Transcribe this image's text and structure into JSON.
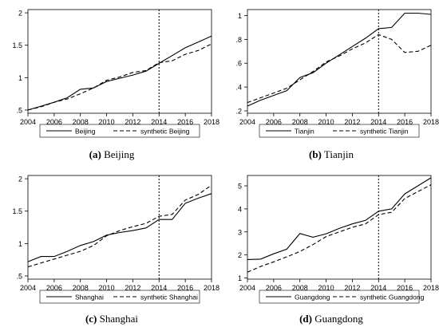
{
  "chart_data": [
    {
      "type": "line",
      "x": [
        2004,
        2005,
        2006,
        2007,
        2008,
        2009,
        2010,
        2011,
        2012,
        2013,
        2014,
        2015,
        2016,
        2017,
        2018
      ],
      "series": [
        {
          "name": "Beijing",
          "style": "solid",
          "values": [
            0.5,
            0.56,
            0.62,
            0.69,
            0.82,
            0.84,
            0.94,
            0.99,
            1.04,
            1.1,
            1.22,
            1.34,
            1.46,
            1.55,
            1.64
          ]
        },
        {
          "name": "synthetic Beijing",
          "style": "dashed",
          "values": [
            0.5,
            0.55,
            0.62,
            0.67,
            0.75,
            0.84,
            0.96,
            1.01,
            1.08,
            1.11,
            1.23,
            1.26,
            1.36,
            1.42,
            1.52
          ]
        }
      ],
      "xticks": [
        2004,
        2006,
        2008,
        2010,
        2012,
        2014,
        2016,
        2018
      ],
      "yticks": [
        0.5,
        1,
        1.5,
        2
      ],
      "ytick_labels": [
        ".5",
        "1",
        "1.5",
        "2"
      ],
      "xlim": [
        2004,
        2018
      ],
      "ylim": [
        0.45,
        2.05
      ],
      "vline": 2014,
      "caption_label": "(a)",
      "caption_text": "Beijing"
    },
    {
      "type": "line",
      "x": [
        2004,
        2005,
        2006,
        2007,
        2008,
        2009,
        2010,
        2011,
        2012,
        2013,
        2014,
        2015,
        2016,
        2017,
        2018
      ],
      "series": [
        {
          "name": "Tianjin",
          "style": "solid",
          "values": [
            0.24,
            0.29,
            0.33,
            0.37,
            0.48,
            0.52,
            0.6,
            0.67,
            0.74,
            0.81,
            0.89,
            0.9,
            1.02,
            1.02,
            1.01
          ]
        },
        {
          "name": "synthetic Tianjin",
          "style": "dashed",
          "values": [
            0.27,
            0.31,
            0.35,
            0.39,
            0.46,
            0.53,
            0.61,
            0.66,
            0.72,
            0.77,
            0.84,
            0.8,
            0.69,
            0.7,
            0.75
          ]
        }
      ],
      "xticks": [
        2004,
        2006,
        2008,
        2010,
        2012,
        2014,
        2016,
        2018
      ],
      "yticks": [
        0.2,
        0.4,
        0.6,
        0.8,
        1
      ],
      "ytick_labels": [
        ".2",
        ".4",
        ".6",
        ".8",
        "1"
      ],
      "xlim": [
        2004,
        2018
      ],
      "ylim": [
        0.18,
        1.05
      ],
      "vline": 2014,
      "caption_label": "(b)",
      "caption_text": "Tianjin"
    },
    {
      "type": "line",
      "x": [
        2004,
        2005,
        2006,
        2007,
        2008,
        2009,
        2010,
        2011,
        2012,
        2013,
        2014,
        2015,
        2016,
        2017,
        2018
      ],
      "series": [
        {
          "name": "Shanghai",
          "style": "solid",
          "values": [
            0.72,
            0.8,
            0.8,
            0.88,
            0.97,
            1.03,
            1.13,
            1.17,
            1.2,
            1.24,
            1.37,
            1.37,
            1.62,
            1.7,
            1.77
          ]
        },
        {
          "name": "synthetic Shanghai",
          "style": "dashed",
          "values": [
            0.64,
            0.7,
            0.76,
            0.82,
            0.88,
            0.97,
            1.12,
            1.2,
            1.26,
            1.31,
            1.42,
            1.45,
            1.67,
            1.76,
            1.9
          ]
        }
      ],
      "xticks": [
        2004,
        2006,
        2008,
        2010,
        2012,
        2014,
        2016,
        2018
      ],
      "yticks": [
        0.5,
        1,
        1.5,
        2
      ],
      "ytick_labels": [
        ".5",
        "1",
        "1.5",
        "2"
      ],
      "xlim": [
        2004,
        2018
      ],
      "ylim": [
        0.45,
        2.05
      ],
      "vline": 2014,
      "caption_label": "(c)",
      "caption_text": "Shanghai"
    },
    {
      "type": "line",
      "x": [
        2004,
        2005,
        2006,
        2007,
        2008,
        2009,
        2010,
        2011,
        2012,
        2013,
        2014,
        2015,
        2016,
        2017,
        2018
      ],
      "series": [
        {
          "name": "Guangdong",
          "style": "solid",
          "values": [
            1.8,
            1.82,
            2.05,
            2.25,
            2.93,
            2.77,
            2.92,
            3.15,
            3.35,
            3.5,
            3.9,
            4.0,
            4.65,
            5.0,
            5.35
          ]
        },
        {
          "name": "synthetic Guangdong",
          "style": "dashed",
          "values": [
            1.25,
            1.5,
            1.7,
            1.92,
            2.15,
            2.45,
            2.8,
            3.0,
            3.2,
            3.35,
            3.75,
            3.85,
            4.45,
            4.75,
            5.05
          ]
        }
      ],
      "xticks": [
        2004,
        2006,
        2008,
        2010,
        2012,
        2014,
        2016,
        2018
      ],
      "yticks": [
        1,
        2,
        3,
        4,
        5
      ],
      "ytick_labels": [
        "1",
        "2",
        "3",
        "4",
        "5"
      ],
      "xlim": [
        2004,
        2018
      ],
      "ylim": [
        0.95,
        5.45
      ],
      "vline": 2014,
      "caption_label": "(d)",
      "caption_text": "Guangdong"
    }
  ]
}
